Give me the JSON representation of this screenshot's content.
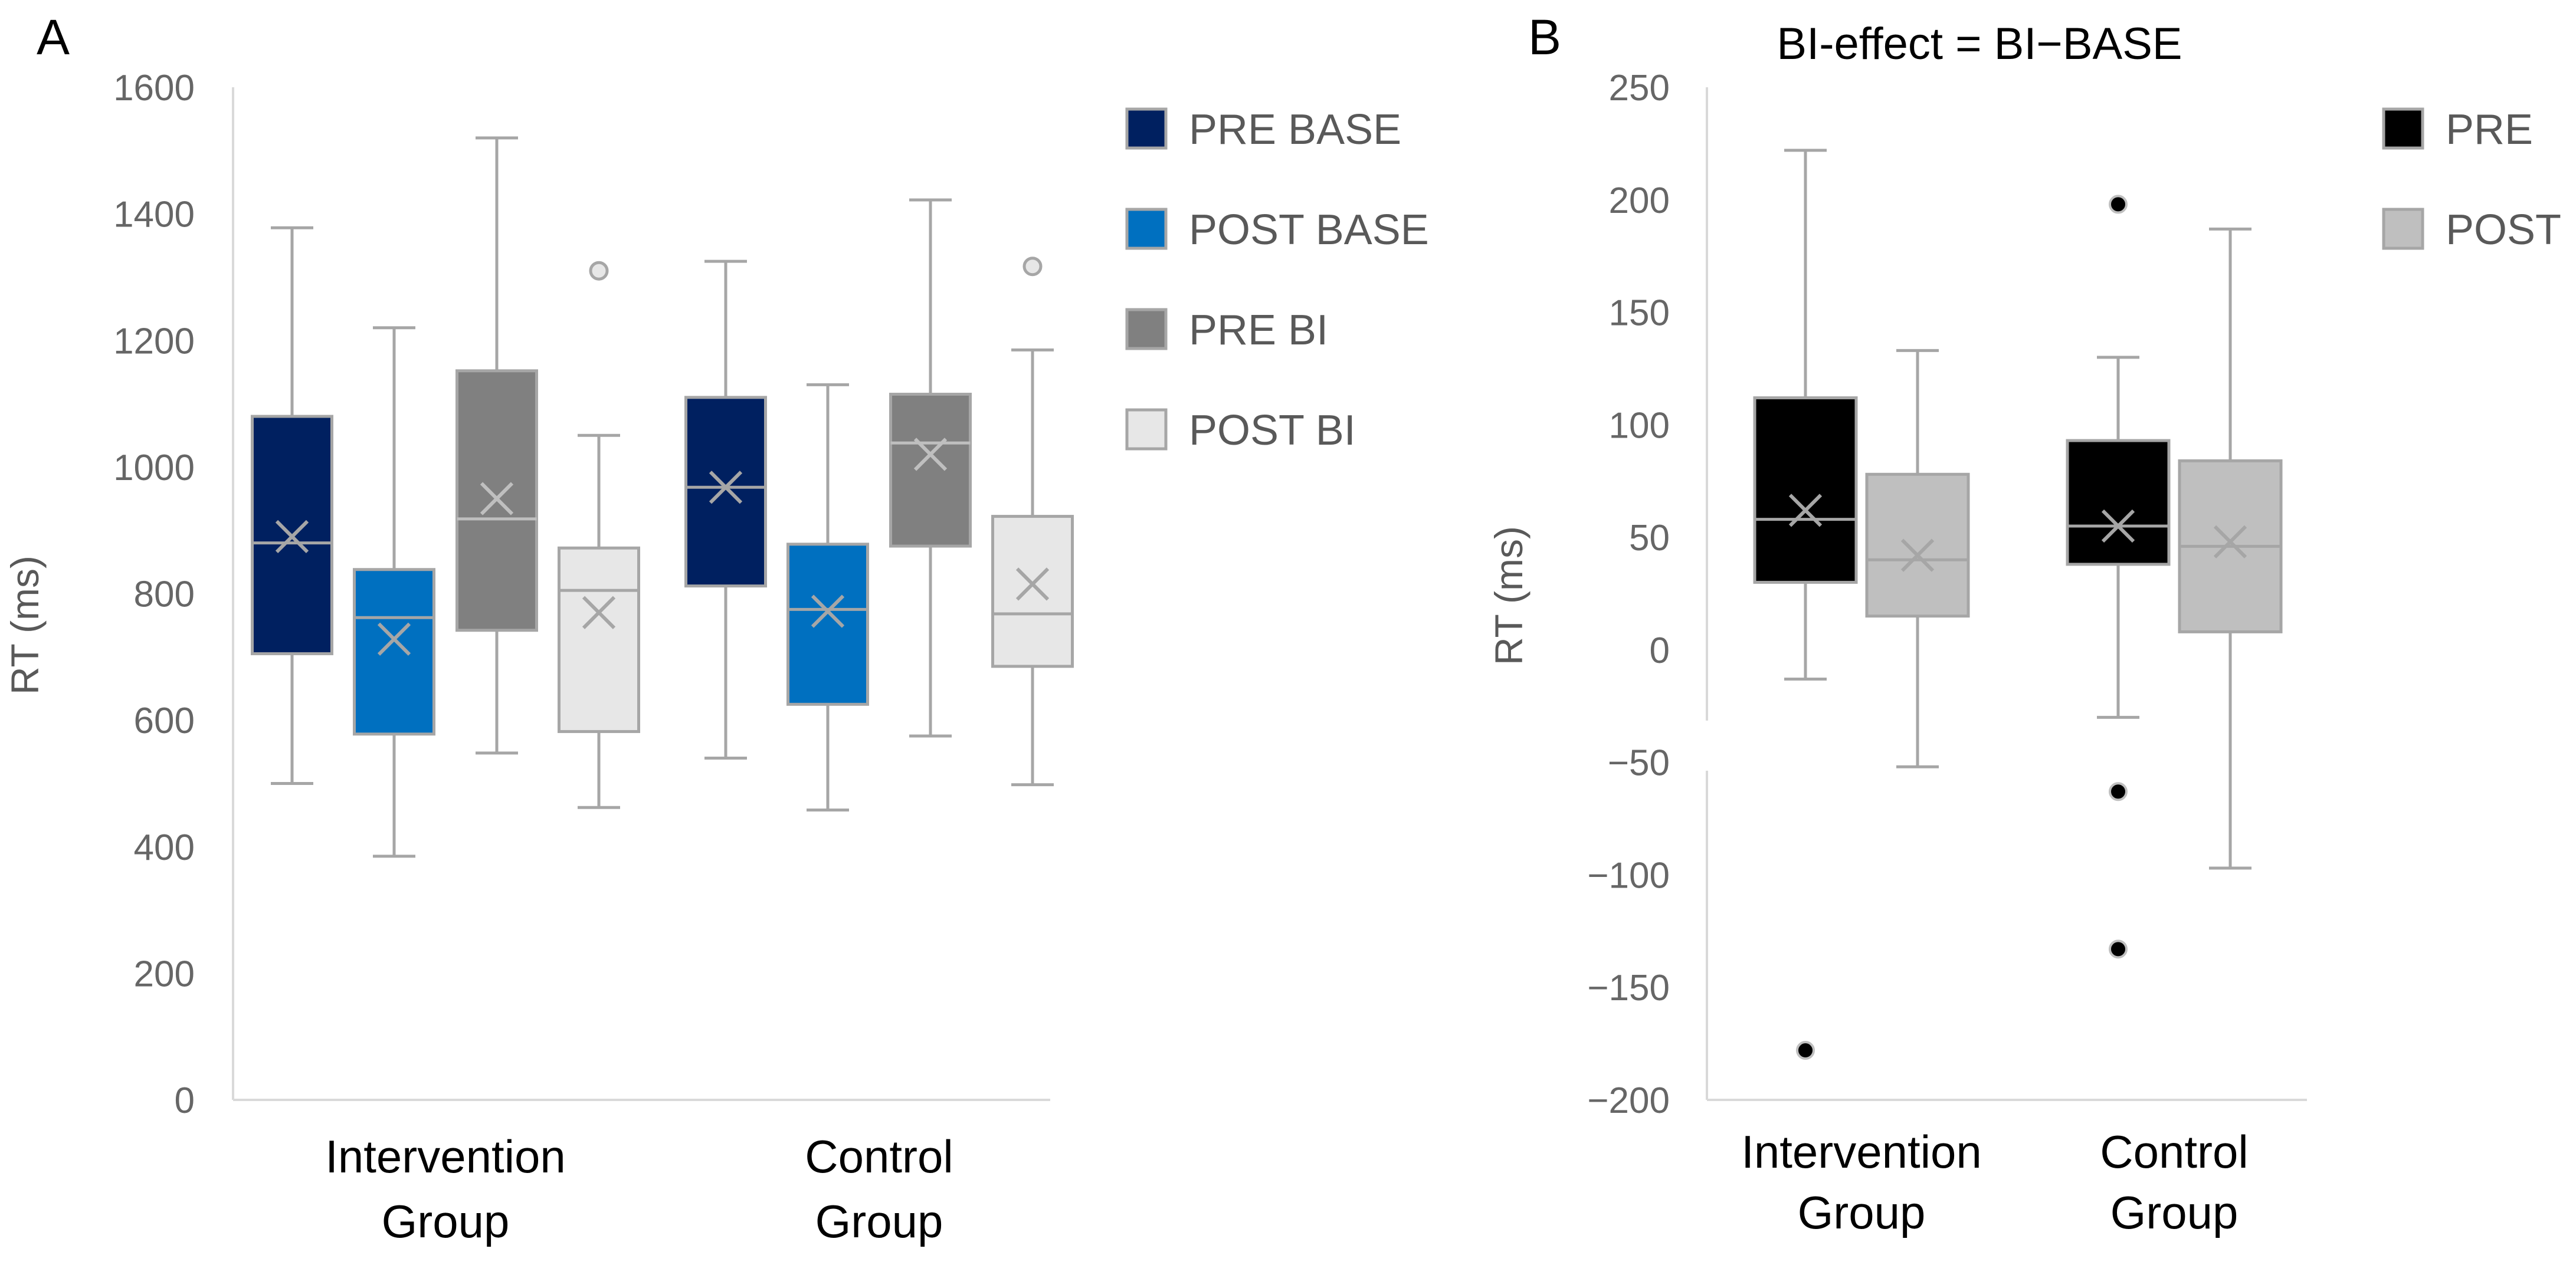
{
  "chart_data": [
    {
      "type": "box",
      "panel_label": "A",
      "title": "",
      "ylabel": "RT (ms)",
      "xlabel": "",
      "ylim": [
        0,
        1600
      ],
      "yticks": [
        "0",
        "200",
        "400",
        "600",
        "800",
        "1000",
        "1200",
        "1400",
        "1600"
      ],
      "ytick_values": [
        0,
        200,
        400,
        600,
        800,
        1000,
        1200,
        1400,
        1600
      ],
      "legend_position": "right",
      "grid": false,
      "categories": [
        {
          "line1": "Intervention",
          "line2": "Group"
        },
        {
          "line1": "Control",
          "line2": "Group"
        }
      ],
      "series": [
        {
          "name": "PRE BASE",
          "color": "#002060",
          "mark_color": "#a6a6a6",
          "stats": [
            {
              "min": 500,
              "q1": 705,
              "median": 880,
              "q3": 1080,
              "max": 1378,
              "mean": 890,
              "outliers": []
            },
            {
              "min": 540,
              "q1": 812,
              "median": 968,
              "q3": 1110,
              "max": 1325,
              "mean": 968,
              "outliers": []
            }
          ]
        },
        {
          "name": "POST BASE",
          "color": "#0070c0",
          "mark_color": "#a6a6a6",
          "stats": [
            {
              "min": 385,
              "q1": 578,
              "median": 762,
              "q3": 838,
              "max": 1220,
              "mean": 728,
              "outliers": []
            },
            {
              "min": 458,
              "q1": 625,
              "median": 775,
              "q3": 878,
              "max": 1130,
              "mean": 772,
              "outliers": []
            }
          ]
        },
        {
          "name": "PRE BI",
          "color": "#808080",
          "mark_color": "#bfbfbf",
          "stats": [
            {
              "min": 548,
              "q1": 742,
              "median": 918,
              "q3": 1152,
              "max": 1520,
              "mean": 950,
              "outliers": []
            },
            {
              "min": 575,
              "q1": 875,
              "median": 1038,
              "q3": 1115,
              "max": 1422,
              "mean": 1020,
              "outliers": []
            }
          ]
        },
        {
          "name": "POST BI",
          "color": "#e7e7e7",
          "mark_color": "#a6a6a6",
          "stats": [
            {
              "min": 462,
              "q1": 582,
              "median": 805,
              "q3": 872,
              "max": 1050,
              "mean": 770,
              "outliers": [
                1310
              ]
            },
            {
              "min": 498,
              "q1": 685,
              "median": 768,
              "q3": 922,
              "max": 1185,
              "mean": 815,
              "outliers": [
                1317
              ]
            }
          ]
        }
      ]
    },
    {
      "type": "box",
      "panel_label": "B",
      "title": "BI-effect = BI−BASE",
      "ylabel": "RT (ms)",
      "xlabel": "",
      "ylim": [
        -200,
        250
      ],
      "yticks": [
        "−200",
        "−150",
        "−100",
        "−50",
        "0",
        "50",
        "100",
        "150",
        "200",
        "250"
      ],
      "ytick_values": [
        -200,
        -150,
        -100,
        -50,
        0,
        50,
        100,
        150,
        200,
        250
      ],
      "legend_position": "right",
      "grid": false,
      "categories": [
        {
          "line1": "Intervention",
          "line2": "Group"
        },
        {
          "line1": "Control",
          "line2": "Group"
        }
      ],
      "series": [
        {
          "name": "PRE",
          "color": "#000000",
          "mark_color": "#a6a6a6",
          "stats": [
            {
              "min": -13,
              "q1": 30,
              "median": 58,
              "q3": 112,
              "max": 222,
              "mean": 62,
              "outliers": [
                -178
              ]
            },
            {
              "min": -30,
              "q1": 38,
              "median": 55,
              "q3": 93,
              "max": 130,
              "mean": 55,
              "outliers": [
                198,
                -63,
                -133
              ]
            }
          ]
        },
        {
          "name": "POST",
          "color": "#bfbfbf",
          "mark_color": "#a6a6a6",
          "stats": [
            {
              "min": -52,
              "q1": 15,
              "median": 40,
              "q3": 78,
              "max": 133,
              "mean": 42,
              "outliers": []
            },
            {
              "min": -97,
              "q1": 8,
              "median": 46,
              "q3": 84,
              "max": 187,
              "mean": 48,
              "outliers": []
            }
          ]
        }
      ]
    }
  ]
}
